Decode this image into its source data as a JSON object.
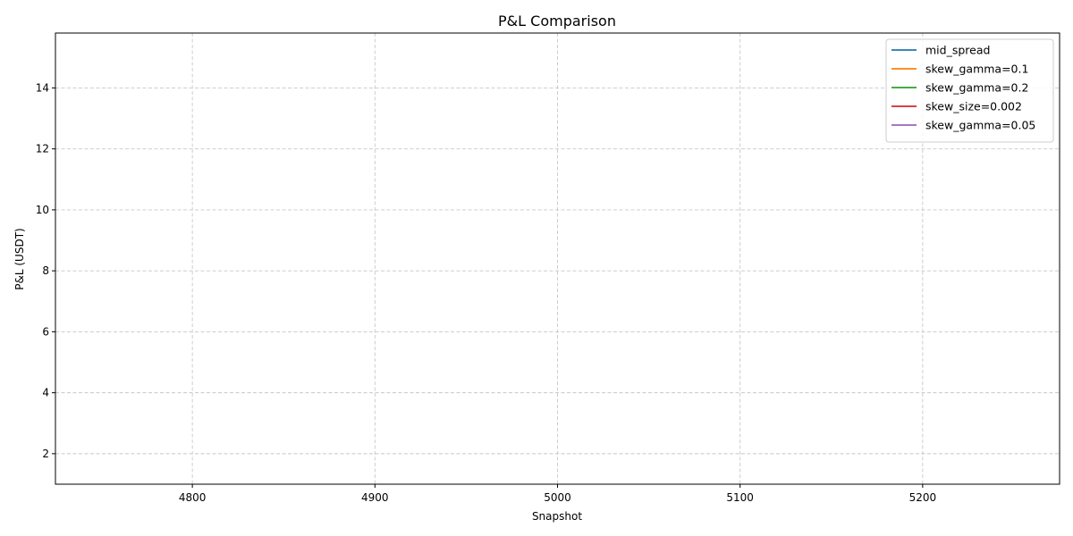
{
  "chart_data": {
    "type": "line",
    "title": "P&L Comparison",
    "xlabel": "Snapshot",
    "ylabel": "P&L (USDT)",
    "xlim": [
      4725,
      5275
    ],
    "ylim": [
      1,
      15.8
    ],
    "x_ticks": [
      4800,
      4900,
      5000,
      5100,
      5200
    ],
    "y_ticks": [
      2,
      4,
      6,
      8,
      10,
      12,
      14
    ],
    "grid": true,
    "legend_position": "top-right",
    "series": [
      {
        "name": "mid_spread",
        "color": "#1f77b4",
        "x": [],
        "values": []
      },
      {
        "name": "skew_gamma=0.1",
        "color": "#ff7f0e",
        "x": [],
        "values": []
      },
      {
        "name": "skew_gamma=0.2",
        "color": "#2ca02c",
        "x": [],
        "values": []
      },
      {
        "name": "skew_size=0.002",
        "color": "#d62728",
        "x": [],
        "values": []
      },
      {
        "name": "skew_gamma=0.05",
        "color": "#9467bd",
        "x": [],
        "values": []
      }
    ]
  }
}
